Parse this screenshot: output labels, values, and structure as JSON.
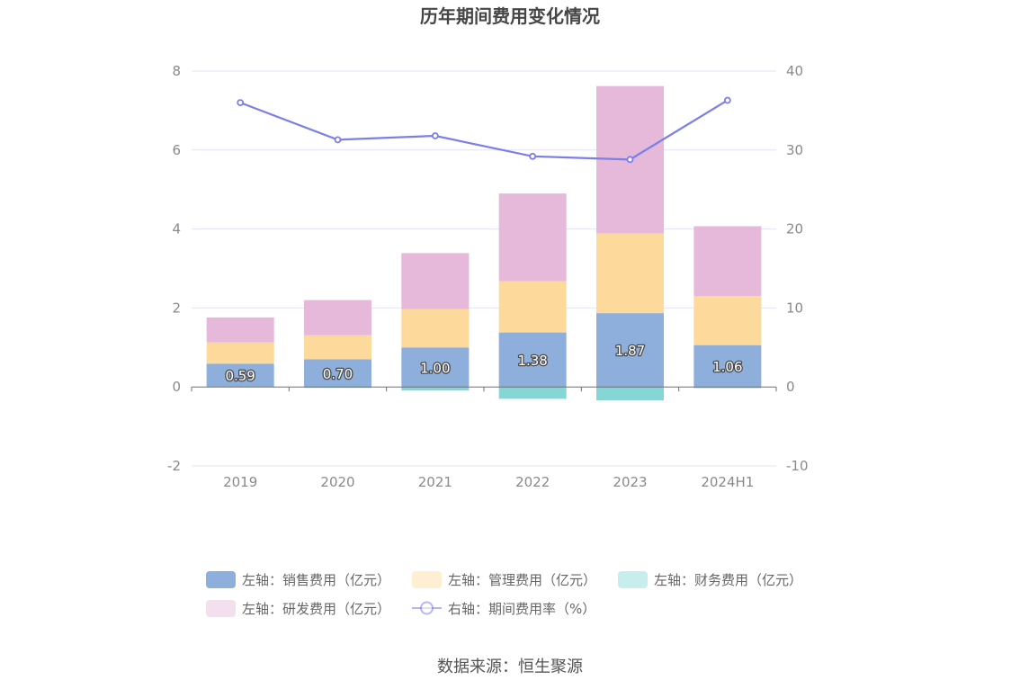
{
  "chart_data": {
    "type": "bar",
    "title": "历年期间费用变化情况",
    "categories": [
      "2019",
      "2020",
      "2021",
      "2022",
      "2023",
      "2024H1"
    ],
    "left_axis": {
      "min": -2,
      "max": 8,
      "ticks": [
        "-2",
        "0",
        "2",
        "4",
        "6",
        "8"
      ]
    },
    "right_axis": {
      "min": -10,
      "max": 40,
      "ticks": [
        "-10",
        "0",
        "10",
        "20",
        "30",
        "40"
      ]
    },
    "stacked_series": [
      {
        "name": "左轴：销售费用（亿元）",
        "axis": "left",
        "color": "#8eafdc",
        "values": [
          0.59,
          0.7,
          1.0,
          1.38,
          1.87,
          1.06
        ],
        "labels": [
          "0.59",
          "0.70",
          "1.00",
          "1.38",
          "1.87",
          "1.06"
        ]
      },
      {
        "name": "左轴：管理费用（亿元）",
        "axis": "left",
        "color": "#fdd99b",
        "values": [
          0.54,
          0.61,
          0.97,
          1.3,
          2.02,
          1.24
        ]
      },
      {
        "name": "左轴：财务费用（亿元）",
        "axis": "left",
        "color": "#86d6d6",
        "values": [
          0.0,
          -0.02,
          -0.09,
          -0.3,
          -0.34,
          -0.03
        ]
      },
      {
        "name": "左轴：研发费用（亿元）",
        "axis": "left",
        "color": "#e6b9da",
        "values": [
          0.63,
          0.89,
          1.42,
          2.22,
          3.73,
          1.77
        ]
      }
    ],
    "line_series": [
      {
        "name": "右轴：期间费用率（%）",
        "axis": "right",
        "color": "#7b7fe8",
        "values": [
          36.0,
          31.3,
          31.8,
          29.2,
          28.8,
          36.3
        ]
      }
    ],
    "grid": true,
    "legend_position": "bottom"
  },
  "footer": {
    "source": "数据来源：恒生聚源"
  }
}
